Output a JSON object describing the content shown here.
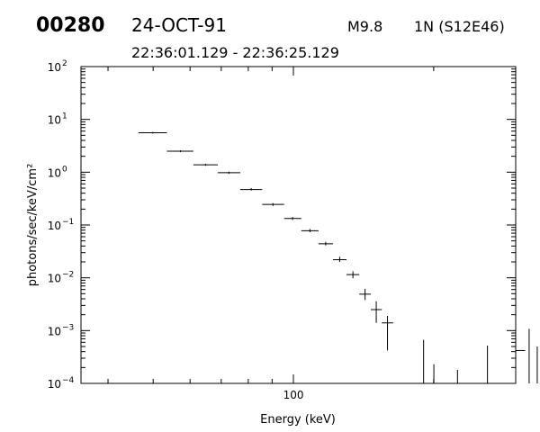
{
  "header": {
    "event_id": "00280",
    "date": "24-OCT-91",
    "flare_class": "M9.8",
    "location": "1N (S12E46)",
    "time_range": "22:36:01.129 - 22:36:25.129"
  },
  "chart_data": {
    "type": "scatter",
    "title": "",
    "xlabel": "Energy (keV)",
    "ylabel": "photons/sec/keV/cm²",
    "x_scale": "log",
    "y_scale": "log",
    "xlim": [
      35,
      300
    ],
    "ylim": [
      0.0001,
      100
    ],
    "x_tick_labels": [
      "100"
    ],
    "y_tick_labels": [
      {
        "base": "10",
        "exp": "2"
      },
      {
        "base": "10",
        "exp": "1"
      },
      {
        "base": "10",
        "exp": "0"
      },
      {
        "base": "10",
        "exp": "−1"
      },
      {
        "base": "10",
        "exp": "−2"
      },
      {
        "base": "10",
        "exp": "−3"
      },
      {
        "base": "10",
        "exp": "−4"
      }
    ],
    "y_tick_values": [
      100,
      10,
      1,
      0.1,
      0.01,
      0.001,
      0.0001
    ],
    "points": [
      {
        "x": 49.9,
        "x_lo": 46.5,
        "x_hi": 53.5,
        "y": 5.6,
        "y_lo": 5.4,
        "y_hi": 5.8
      },
      {
        "x": 57.2,
        "x_lo": 53.5,
        "x_hi": 61.0,
        "y": 2.5,
        "y_lo": 2.4,
        "y_hi": 2.6
      },
      {
        "x": 64.8,
        "x_lo": 61.0,
        "x_hi": 68.8,
        "y": 1.38,
        "y_lo": 1.32,
        "y_hi": 1.44
      },
      {
        "x": 72.7,
        "x_lo": 68.8,
        "x_hi": 76.9,
        "y": 0.98,
        "y_lo": 0.93,
        "y_hi": 1.03
      },
      {
        "x": 81.2,
        "x_lo": 76.9,
        "x_hi": 85.7,
        "y": 0.47,
        "y_lo": 0.45,
        "y_hi": 0.5
      },
      {
        "x": 90.4,
        "x_lo": 85.7,
        "x_hi": 95.5,
        "y": 0.245,
        "y_lo": 0.23,
        "y_hi": 0.26
      },
      {
        "x": 99.6,
        "x_lo": 95.5,
        "x_hi": 104.0,
        "y": 0.133,
        "y_lo": 0.125,
        "y_hi": 0.142
      },
      {
        "x": 108.5,
        "x_lo": 104.0,
        "x_hi": 113.2,
        "y": 0.078,
        "y_lo": 0.073,
        "y_hi": 0.084
      },
      {
        "x": 117.3,
        "x_lo": 113.2,
        "x_hi": 121.6,
        "y": 0.044,
        "y_lo": 0.041,
        "y_hi": 0.048
      },
      {
        "x": 125.7,
        "x_lo": 121.6,
        "x_hi": 130.0,
        "y": 0.022,
        "y_lo": 0.02,
        "y_hi": 0.025
      },
      {
        "x": 134.2,
        "x_lo": 130.0,
        "x_hi": 138.5,
        "y": 0.0115,
        "y_lo": 0.0098,
        "y_hi": 0.0133
      },
      {
        "x": 142.5,
        "x_lo": 138.5,
        "x_hi": 146.6,
        "y": 0.0049,
        "y_lo": 0.0038,
        "y_hi": 0.0062
      },
      {
        "x": 150.6,
        "x_lo": 146.6,
        "x_hi": 154.8,
        "y": 0.0025,
        "y_lo": 0.0014,
        "y_hi": 0.0036
      },
      {
        "x": 159.2,
        "x_lo": 154.8,
        "x_hi": 163.7,
        "y": 0.0014,
        "y_lo": 0.00042,
        "y_hi": 0.0019
      },
      {
        "x": 190.3,
        "x_lo": 190.3,
        "x_hi": 190.3,
        "y": null,
        "y_lo": 0.0001,
        "y_hi": 0.00067
      },
      {
        "x": 200.2,
        "x_lo": 200.2,
        "x_hi": 200.2,
        "y": null,
        "y_lo": 0.0001,
        "y_hi": 0.00023
      },
      {
        "x": 225.0,
        "x_lo": 225.0,
        "x_hi": 225.0,
        "y": null,
        "y_lo": 0.0001,
        "y_hi": 0.00018
      },
      {
        "x": 260.9,
        "x_lo": 260.9,
        "x_hi": 260.9,
        "y": null,
        "y_lo": 0.0001,
        "y_hi": 0.00052
      },
      {
        "x": 320.6,
        "x_lo": 314.3,
        "x_hi": 327.0,
        "y": 0.00042,
        "y_lo": 0.0001,
        "y_hi": 0.00108
      },
      {
        "x": 333.7,
        "x_lo": 333.7,
        "x_hi": 333.7,
        "y": null,
        "y_lo": 0.0001,
        "y_hi": 0.0005
      }
    ]
  }
}
